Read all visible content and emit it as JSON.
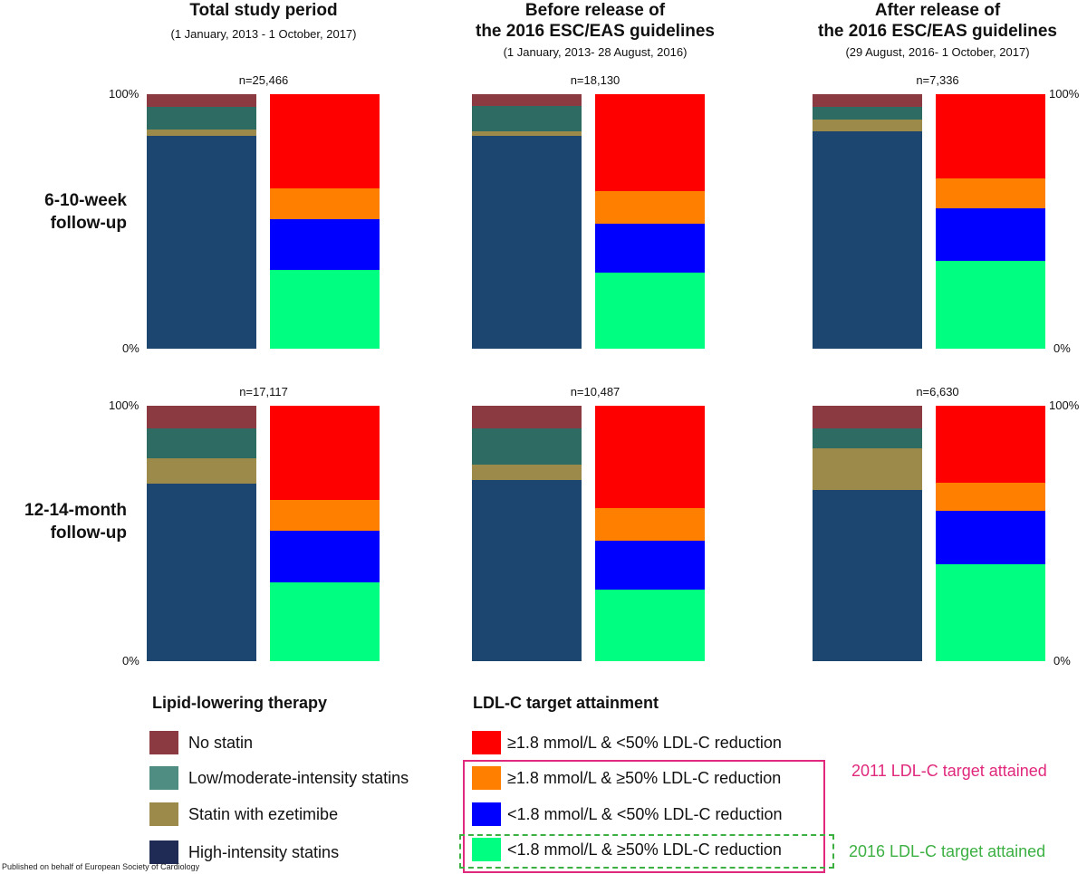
{
  "columns": [
    {
      "title_lines": [
        "Total study period"
      ],
      "subtitle": "(1 January, 2013 - 1 October, 2017)"
    },
    {
      "title_lines": [
        "Before release of",
        "the 2016 ESC/EAS guidelines"
      ],
      "subtitle": "(1 January, 2013- 28 August, 2016)"
    },
    {
      "title_lines": [
        "After release of",
        "the 2016 ESC/EAS guidelines"
      ],
      "subtitle": "(29 August, 2016- 1 October, 2017)"
    }
  ],
  "rows": [
    {
      "label_lines": [
        "6-10-week",
        "follow-up"
      ]
    },
    {
      "label_lines": [
        "12-14-month",
        "follow-up"
      ]
    }
  ],
  "tick_labels": {
    "top": "100%",
    "bottom": "0%"
  },
  "colors": {
    "no_statin": "#8b3a42",
    "low_moderate": "#2e6b63",
    "ezetimibe": "#9b8a4a",
    "high_intensity": "#1c4570",
    "ldl_red": "#ff0000",
    "ldl_orange": "#ff8000",
    "ldl_blue": "#0000ff",
    "ldl_green": "#00ff80",
    "legend_high_intensity": "#1f2b55",
    "legend_low_moderate": "#4f8c82",
    "pink": "#e0287c",
    "green_note": "#3cb043"
  },
  "chart_data": {
    "type": "bar",
    "stacked": true,
    "ylim": [
      0,
      100
    ],
    "panels": [
      {
        "row": 0,
        "col": 0,
        "n": "n=25,466",
        "therapy": {
          "high_intensity": 83.5,
          "ezetimibe": 2.5,
          "low_moderate": 9,
          "no_statin": 5
        },
        "ldl": {
          "green": 31,
          "blue": 20,
          "orange": 12,
          "red": 37
        }
      },
      {
        "row": 0,
        "col": 1,
        "n": "n=18,130",
        "therapy": {
          "high_intensity": 83.5,
          "ezetimibe": 2,
          "low_moderate": 10,
          "no_statin": 4.5
        },
        "ldl": {
          "green": 30,
          "blue": 19,
          "orange": 13,
          "red": 38
        }
      },
      {
        "row": 0,
        "col": 2,
        "n": "n=7,336",
        "therapy": {
          "high_intensity": 85.5,
          "ezetimibe": 4.5,
          "low_moderate": 5,
          "no_statin": 5
        },
        "ldl": {
          "green": 34.5,
          "blue": 20.5,
          "orange": 12,
          "red": 33
        }
      },
      {
        "row": 1,
        "col": 0,
        "n": "n=17,117",
        "therapy": {
          "high_intensity": 69.5,
          "ezetimibe": 10,
          "low_moderate": 11.5,
          "no_statin": 9
        },
        "ldl": {
          "green": 31,
          "blue": 20,
          "orange": 12,
          "red": 37
        }
      },
      {
        "row": 1,
        "col": 1,
        "n": "n=10,487",
        "therapy": {
          "high_intensity": 71,
          "ezetimibe": 6,
          "low_moderate": 14,
          "no_statin": 9
        },
        "ldl": {
          "green": 28,
          "blue": 19,
          "orange": 13,
          "red": 40
        }
      },
      {
        "row": 1,
        "col": 2,
        "n": "n=6,630",
        "therapy": {
          "high_intensity": 67,
          "ezetimibe": 16.5,
          "low_moderate": 7.5,
          "no_statin": 9
        },
        "ldl": {
          "green": 38,
          "blue": 21,
          "orange": 11,
          "red": 30
        }
      }
    ]
  },
  "legend": {
    "therapy_title": "Lipid-lowering therapy",
    "therapy_items": [
      {
        "label": "No statin",
        "color_key": "no_statin"
      },
      {
        "label": "Low/moderate-intensity statins",
        "color_key": "legend_low_moderate"
      },
      {
        "label": "Statin with ezetimibe",
        "color_key": "ezetimibe"
      },
      {
        "label": "High-intensity statins",
        "color_key": "legend_high_intensity"
      }
    ],
    "ldl_title": "LDL-C target attainment",
    "ldl_items": [
      {
        "label": "≥1.8 mmol/L & <50% LDL-C reduction",
        "color_key": "ldl_red"
      },
      {
        "label": "≥1.8 mmol/L & ≥50% LDL-C reduction",
        "color_key": "ldl_orange"
      },
      {
        "label": "<1.8 mmol/L & <50% LDL-C reduction",
        "color_key": "ldl_blue"
      },
      {
        "label": "<1.8 mmol/L & ≥50% LDL-C reduction",
        "color_key": "ldl_green"
      }
    ],
    "note_2011": "2011 LDL-C target attained",
    "note_2016": "2016 LDL-C target attained"
  },
  "footer": "Published on behalf of European Society of Cardiology"
}
